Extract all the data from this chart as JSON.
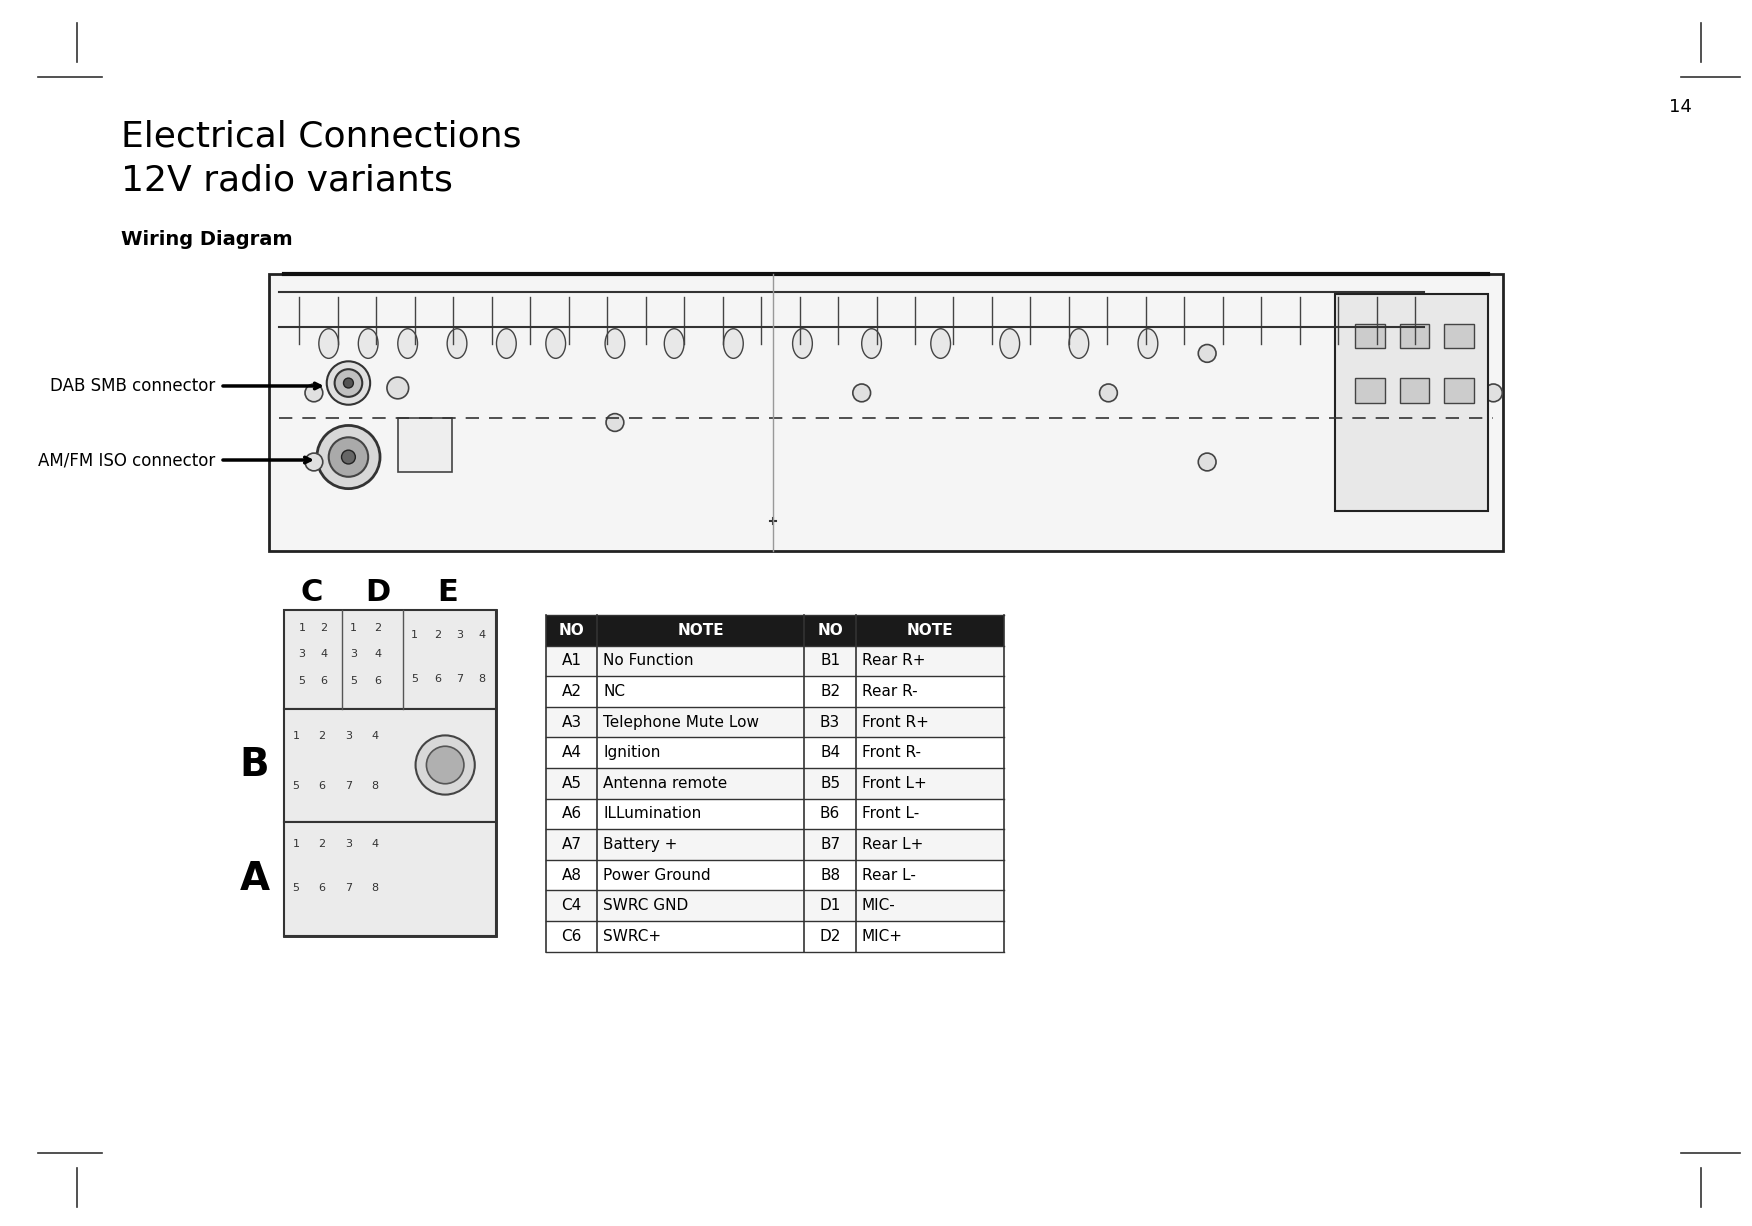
{
  "title_line1": "Electrical Connections",
  "title_line2": "12V radio variants",
  "subtitle": "Wiring Diagram",
  "page_number": "14",
  "dab_label": "DAB SMB connector",
  "amfm_label": "AM/FM ISO connector",
  "table_headers": [
    "NO",
    "NOTE",
    "NO",
    "NOTE"
  ],
  "table_rows": [
    [
      "A1",
      "No Function",
      "B1",
      "Rear R+"
    ],
    [
      "A2",
      "NC",
      "B2",
      "Rear R-"
    ],
    [
      "A3",
      "Telephone Mute Low",
      "B3",
      "Front R+"
    ],
    [
      "A4",
      "Ignition",
      "B4",
      "Front R-"
    ],
    [
      "A5",
      "Antenna remote",
      "B5",
      "Front L+"
    ],
    [
      "A6",
      "ILLumination",
      "B6",
      "Front L-"
    ],
    [
      "A7",
      "Battery +",
      "B7",
      "Rear L+"
    ],
    [
      "A8",
      "Power Ground",
      "B8",
      "Rear L-"
    ],
    [
      "C4",
      "SWRC GND",
      "D1",
      "MIC-"
    ],
    [
      "C6",
      "SWRC+",
      "D2",
      "MIC+"
    ]
  ],
  "connector_labels": [
    "C",
    "D",
    "E"
  ],
  "row_label_B": "B",
  "row_label_A": "A",
  "bg_color": "#ffffff",
  "text_color": "#000000",
  "table_header_bg": "#1a1a1a",
  "table_header_fg": "#ffffff",
  "table_border_color": "#333333",
  "line_color": "#000000",
  "diagram_border_color": "#333333",
  "dashed_line_color": "#333333"
}
